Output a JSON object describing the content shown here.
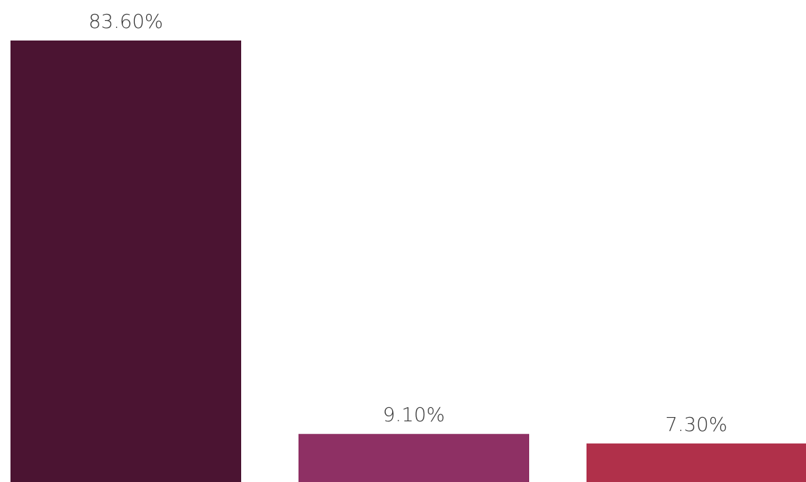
{
  "chart_data": {
    "type": "bar",
    "title": "",
    "xlabel": "",
    "ylabel": "",
    "categories": [
      "",
      "",
      ""
    ],
    "values": [
      83.6,
      9.1,
      7.3
    ],
    "value_labels": [
      "83.60%",
      "9.10%",
      "7.30%"
    ],
    "colors": [
      "#4b1432",
      "#8e3064",
      "#b0304a"
    ],
    "ylim": [
      0,
      83.6
    ],
    "grid": false,
    "legend": "none",
    "axes_visible": false
  }
}
